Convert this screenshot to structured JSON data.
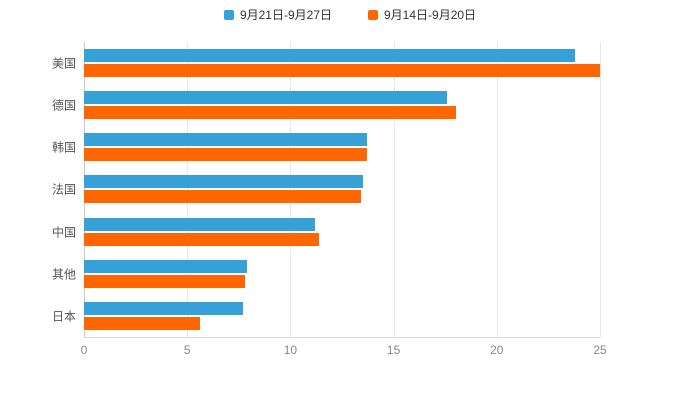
{
  "legend": {
    "items": [
      {
        "label": "9月21日-9月27日",
        "color": "#36A1D6"
      },
      {
        "label": "9月14日-9月20日",
        "color": "#FF6600"
      }
    ]
  },
  "colors": {
    "series1": "#36A1D6",
    "series2": "#FF6600",
    "gridline": "#e6e6e6",
    "tick_text": "#888888",
    "category_text": "#555555"
  },
  "chart_data": {
    "type": "bar",
    "orientation": "horizontal",
    "categories": [
      "美国",
      "德国",
      "韩国",
      "法国",
      "中国",
      "其他",
      "日本"
    ],
    "series": [
      {
        "name": "9月21日-9月27日",
        "color": "#36A1D6",
        "values": [
          23.8,
          17.6,
          13.7,
          13.5,
          11.2,
          7.9,
          7.7
        ]
      },
      {
        "name": "9月14日-9月20日",
        "color": "#FF6600",
        "values": [
          25.0,
          18.0,
          13.7,
          13.4,
          11.4,
          7.8,
          5.6
        ]
      }
    ],
    "title": "",
    "xlabel": "",
    "ylabel": "",
    "xlim": [
      0,
      25
    ],
    "xticks": [
      0,
      5,
      10,
      15,
      20,
      25
    ],
    "grid": true,
    "legend_position": "top"
  }
}
